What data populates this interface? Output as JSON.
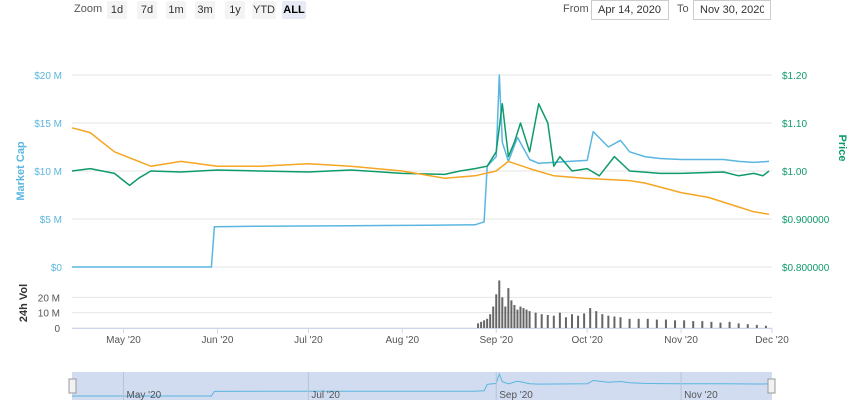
{
  "toolbar": {
    "zoom_label": "Zoom",
    "zoom_buttons": [
      "1d",
      "7d",
      "1m",
      "3m",
      "1y",
      "YTD",
      "ALL"
    ],
    "active_zoom": "ALL",
    "from_label": "From",
    "from_date": "Apr 14, 2020",
    "to_label": "To",
    "to_date": "Nov 30, 2020"
  },
  "colors": {
    "market_cap": "#5ab6e0",
    "price": "#0e9b6a",
    "orange": "#f5a623",
    "volume": "#666666",
    "navigator_fill": "#c9d6ee"
  },
  "chart_data": {
    "type": "line",
    "x_axis": {
      "type": "date",
      "range": [
        "2020-04-14",
        "2020-12-01"
      ],
      "tick_labels": [
        "May '20",
        "Jun '20",
        "Jul '20",
        "Aug '20",
        "Sep '20",
        "Oct '20",
        "Nov '20",
        "Dec '20"
      ],
      "tick_dates": [
        "2020-05-01",
        "2020-06-01",
        "2020-07-01",
        "2020-08-01",
        "2020-09-01",
        "2020-10-01",
        "2020-11-01",
        "2020-12-01"
      ]
    },
    "y_left": {
      "label": "Market Cap",
      "range": [
        0,
        20000000
      ],
      "tick_labels": [
        "$0",
        "$5 M",
        "$10 M",
        "$15 M",
        "$20 M"
      ],
      "ticks": [
        0,
        5000000,
        10000000,
        15000000,
        20000000
      ]
    },
    "y_right": {
      "label": "Price",
      "range": [
        0.8,
        1.2
      ],
      "tick_labels": [
        "$0.800000",
        "$0.900000",
        "$1.00",
        "$1.10",
        "$1.20"
      ],
      "ticks": [
        0.8,
        0.9,
        1.0,
        1.1,
        1.2
      ]
    },
    "volume_axis": {
      "label": "24h Vol",
      "range": [
        0,
        30000000
      ],
      "tick_labels": [
        "0",
        "10 M",
        "20 M"
      ],
      "ticks": [
        0,
        10000000,
        20000000
      ]
    },
    "grid": true,
    "series": [
      {
        "axis": "left",
        "color": "#5ab6e0",
        "x": [
          "2020-04-14",
          "2020-05-01",
          "2020-05-20",
          "2020-05-30",
          "2020-05-31",
          "2020-06-15",
          "2020-07-15",
          "2020-08-10",
          "2020-08-25",
          "2020-08-27",
          "2020-08-28",
          "2020-08-29",
          "2020-09-01",
          "2020-09-02",
          "2020-09-03",
          "2020-09-05",
          "2020-09-08",
          "2020-09-12",
          "2020-09-15",
          "2020-09-20",
          "2020-09-25",
          "2020-10-01",
          "2020-10-03",
          "2020-10-08",
          "2020-10-12",
          "2020-10-15",
          "2020-10-20",
          "2020-10-25",
          "2020-11-01",
          "2020-11-15",
          "2020-11-20",
          "2020-11-25",
          "2020-11-30"
        ],
        "values": [
          0,
          0,
          0,
          0,
          4200000,
          4250000,
          4300000,
          4350000,
          4400000,
          4600000,
          4700000,
          10500000,
          11500000,
          20000000,
          13000000,
          11000000,
          13500000,
          11200000,
          10800000,
          10900000,
          11000000,
          11100000,
          14100000,
          12500000,
          13200000,
          12000000,
          11500000,
          11300000,
          11200000,
          11200000,
          11000000,
          10900000,
          11000000
        ]
      },
      {
        "axis": "right",
        "color": "#0e9b6a",
        "x": [
          "2020-04-14",
          "2020-04-20",
          "2020-04-28",
          "2020-05-03",
          "2020-05-06",
          "2020-05-10",
          "2020-05-20",
          "2020-06-01",
          "2020-06-15",
          "2020-07-01",
          "2020-07-15",
          "2020-08-01",
          "2020-08-15",
          "2020-08-20",
          "2020-08-25",
          "2020-08-29",
          "2020-09-01",
          "2020-09-03",
          "2020-09-05",
          "2020-09-07",
          "2020-09-09",
          "2020-09-12",
          "2020-09-15",
          "2020-09-18",
          "2020-09-20",
          "2020-09-22",
          "2020-09-26",
          "2020-10-01",
          "2020-10-05",
          "2020-10-10",
          "2020-10-15",
          "2020-10-25",
          "2020-11-01",
          "2020-11-15",
          "2020-11-20",
          "2020-11-25",
          "2020-11-28",
          "2020-11-30"
        ],
        "values": [
          1.0,
          1.005,
          0.995,
          0.97,
          0.985,
          1.0,
          0.998,
          1.002,
          1.0,
          0.998,
          1.002,
          0.995,
          0.993,
          1.0,
          1.005,
          1.01,
          1.04,
          1.14,
          1.03,
          1.06,
          1.1,
          1.04,
          1.14,
          1.1,
          1.01,
          1.03,
          1.0,
          1.005,
          0.99,
          1.03,
          1.0,
          0.995,
          0.995,
          0.998,
          0.99,
          0.995,
          0.99,
          1.0
        ]
      },
      {
        "axis": "right",
        "color": "#f5a623",
        "x": [
          "2020-04-14",
          "2020-04-20",
          "2020-04-28",
          "2020-05-10",
          "2020-05-20",
          "2020-06-01",
          "2020-06-15",
          "2020-07-01",
          "2020-07-15",
          "2020-08-01",
          "2020-08-15",
          "2020-08-25",
          "2020-09-01",
          "2020-09-05",
          "2020-09-12",
          "2020-09-20",
          "2020-09-30",
          "2020-10-15",
          "2020-10-20",
          "2020-11-01",
          "2020-11-10",
          "2020-11-20",
          "2020-11-25",
          "2020-11-30"
        ],
        "values": [
          1.09,
          1.08,
          1.04,
          1.01,
          1.02,
          1.01,
          1.01,
          1.015,
          1.01,
          1.0,
          0.985,
          0.99,
          1.0,
          1.02,
          1.005,
          0.99,
          0.985,
          0.98,
          0.975,
          0.955,
          0.945,
          0.925,
          0.915,
          0.91
        ]
      }
    ],
    "volume": {
      "x": [
        "2020-08-26",
        "2020-08-27",
        "2020-08-28",
        "2020-08-29",
        "2020-08-30",
        "2020-08-31",
        "2020-09-01",
        "2020-09-02",
        "2020-09-03",
        "2020-09-04",
        "2020-09-05",
        "2020-09-06",
        "2020-09-07",
        "2020-09-08",
        "2020-09-09",
        "2020-09-10",
        "2020-09-11",
        "2020-09-12",
        "2020-09-14",
        "2020-09-16",
        "2020-09-18",
        "2020-09-20",
        "2020-09-22",
        "2020-09-24",
        "2020-09-26",
        "2020-09-28",
        "2020-09-30",
        "2020-10-02",
        "2020-10-04",
        "2020-10-06",
        "2020-10-08",
        "2020-10-10",
        "2020-10-12",
        "2020-10-15",
        "2020-10-18",
        "2020-10-21",
        "2020-10-24",
        "2020-10-27",
        "2020-10-30",
        "2020-11-02",
        "2020-11-05",
        "2020-11-08",
        "2020-11-11",
        "2020-11-14",
        "2020-11-17",
        "2020-11-20",
        "2020-11-23",
        "2020-11-26",
        "2020-11-29"
      ],
      "values": [
        3000000,
        4000000,
        5000000,
        6000000,
        9000000,
        14000000,
        22000000,
        31000000,
        20000000,
        14000000,
        26000000,
        18000000,
        15000000,
        12000000,
        14000000,
        13000000,
        12000000,
        11000000,
        10000000,
        9000000,
        8500000,
        8000000,
        10000000,
        7000000,
        9000000,
        8000000,
        9500000,
        13000000,
        11000000,
        9000000,
        8000000,
        7500000,
        7000000,
        6000000,
        6000000,
        6000000,
        5500000,
        5500000,
        5000000,
        5000000,
        4500000,
        4500000,
        4000000,
        3500000,
        4000000,
        3000000,
        2500000,
        2000000,
        1500000
      ]
    },
    "navigator": {
      "tick_labels": [
        "May '20",
        "Jul '20",
        "Sep '20",
        "Nov '20"
      ],
      "tick_dates": [
        "2020-05-01",
        "2020-07-01",
        "2020-09-01",
        "2020-11-01"
      ]
    }
  }
}
